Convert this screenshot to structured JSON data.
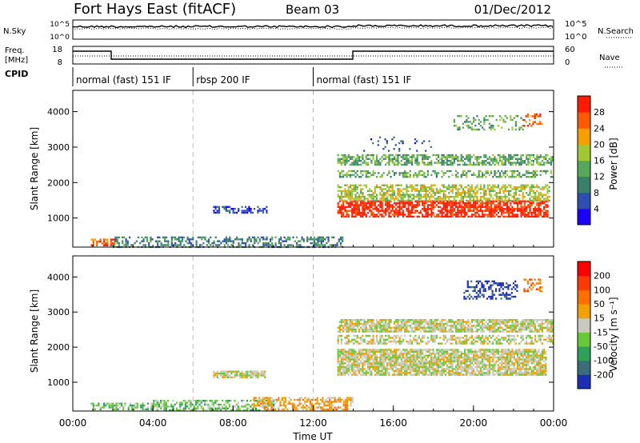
{
  "header": {
    "title": "Fort Hays East (fitACF)",
    "beam": "Beam 03",
    "date": "01/Dec/2012"
  },
  "status_panel": {
    "left": {
      "nsky": "N.Sky",
      "freq": "Freq.",
      "freq_unit": "[MHz]",
      "cpid": "CPID"
    },
    "right": {
      "nsearch": "N.Search",
      "nave": "Nave"
    },
    "noise_ticks": [
      "10^5",
      "10^0"
    ],
    "noise_ticks_right": [
      "10^5",
      "10^0"
    ],
    "freq_ticks": [
      "18",
      "8"
    ],
    "nave_ticks": [
      "60",
      "0"
    ],
    "cpid_segments": [
      {
        "label": "normal (fast) 151 IF",
        "start_hr": 0,
        "end_hr": 6
      },
      {
        "label": "rbsp 200 IF",
        "start_hr": 6,
        "end_hr": 12
      },
      {
        "label": "normal (fast) 151 IF",
        "start_hr": 12,
        "end_hr": 24
      }
    ]
  },
  "chart_data": [
    {
      "type": "heatmap",
      "panel": "power",
      "ylabel": "Slant Range [km]",
      "ylim": [
        180,
        4600
      ],
      "yticks": [
        "1000",
        "2000",
        "3000",
        "4000"
      ],
      "xlim": [
        0,
        24
      ],
      "colorbar_label": "Power [dB]",
      "colorbar_ticks": [
        "4",
        "8",
        "12",
        "16",
        "20",
        "24",
        "28"
      ],
      "colorbar_colors": [
        "#1b00ff",
        "#2f4fb0",
        "#3b7f6a",
        "#55a85a",
        "#a0c832",
        "#f5a000",
        "#ff5a00",
        "#ff1a00"
      ],
      "regions": [
        {
          "t0": 0.9,
          "t1": 2.1,
          "r0": 220,
          "r1": 420,
          "level": 6,
          "density": 0.55
        },
        {
          "t0": 2.0,
          "t1": 13.5,
          "r0": 200,
          "r1": 480,
          "level": 2,
          "density": 0.45
        },
        {
          "t0": 7.0,
          "t1": 9.8,
          "r0": 1130,
          "r1": 1340,
          "level": 1,
          "density": 0.55
        },
        {
          "t0": 13.2,
          "t1": 23.7,
          "r0": 1050,
          "r1": 1500,
          "level": 7,
          "density": 0.75
        },
        {
          "t0": 13.2,
          "t1": 23.8,
          "r0": 1500,
          "r1": 1950,
          "level": 4,
          "density": 0.6
        },
        {
          "t0": 13.2,
          "t1": 24.0,
          "r0": 2150,
          "r1": 2350,
          "level": 3,
          "density": 0.45
        },
        {
          "t0": 13.2,
          "t1": 24.0,
          "r0": 2500,
          "r1": 2800,
          "level": 3,
          "density": 0.6
        },
        {
          "t0": 14.5,
          "t1": 18.0,
          "r0": 2900,
          "r1": 3300,
          "level": 1,
          "density": 0.15
        },
        {
          "t0": 19.0,
          "t1": 22.5,
          "r0": 3500,
          "r1": 3900,
          "level": 3,
          "density": 0.3
        },
        {
          "t0": 22.5,
          "t1": 23.4,
          "r0": 3600,
          "r1": 3950,
          "level": 6,
          "density": 0.4
        }
      ]
    },
    {
      "type": "heatmap",
      "panel": "velocity",
      "ylabel": "Slant Range [km]",
      "xlabel": "Time UT",
      "ylim": [
        180,
        4600
      ],
      "yticks": [
        "1000",
        "2000",
        "3000",
        "4000"
      ],
      "xlim": [
        0,
        24
      ],
      "xticks": [
        "00:00",
        "04:00",
        "08:00",
        "12:00",
        "16:00",
        "20:00",
        "00:00"
      ],
      "colorbar_label": "Velocity [m s⁻¹]",
      "colorbar_ticks": [
        "200",
        "100",
        "50",
        "15",
        "-15",
        "-50",
        "-100",
        "-200"
      ],
      "colorbar_colors": [
        "#1c2fb4",
        "#3a6e7a",
        "#2fa05a",
        "#68c83a",
        "#c9c9be",
        "#f0a000",
        "#ff7000",
        "#ff3a00",
        "#ff0000"
      ],
      "regions": [
        {
          "t0": 0.9,
          "t1": 4.0,
          "r0": 220,
          "r1": 420,
          "level": 3,
          "density": 0.5
        },
        {
          "t0": 4.0,
          "t1": 10.0,
          "r0": 200,
          "r1": 500,
          "level": 3,
          "density": 0.55
        },
        {
          "t0": 9.0,
          "t1": 14.0,
          "r0": 200,
          "r1": 580,
          "level": 5,
          "density": 0.6
        },
        {
          "t0": 7.0,
          "t1": 9.6,
          "r0": 1130,
          "r1": 1330,
          "level": 4,
          "density": 0.8
        },
        {
          "t0": 13.2,
          "t1": 23.6,
          "r0": 1200,
          "r1": 1950,
          "level": 4,
          "density": 0.85
        },
        {
          "t0": 13.2,
          "t1": 24.0,
          "r0": 2100,
          "r1": 2350,
          "level": 4,
          "density": 0.55
        },
        {
          "t0": 13.2,
          "t1": 24.0,
          "r0": 2450,
          "r1": 2800,
          "level": 4,
          "density": 0.8
        },
        {
          "t0": 19.5,
          "t1": 22.2,
          "r0": 3400,
          "r1": 3900,
          "level": 0,
          "density": 0.35
        },
        {
          "t0": 22.5,
          "t1": 23.4,
          "r0": 3600,
          "r1": 3950,
          "level": 6,
          "density": 0.4
        }
      ]
    }
  ]
}
